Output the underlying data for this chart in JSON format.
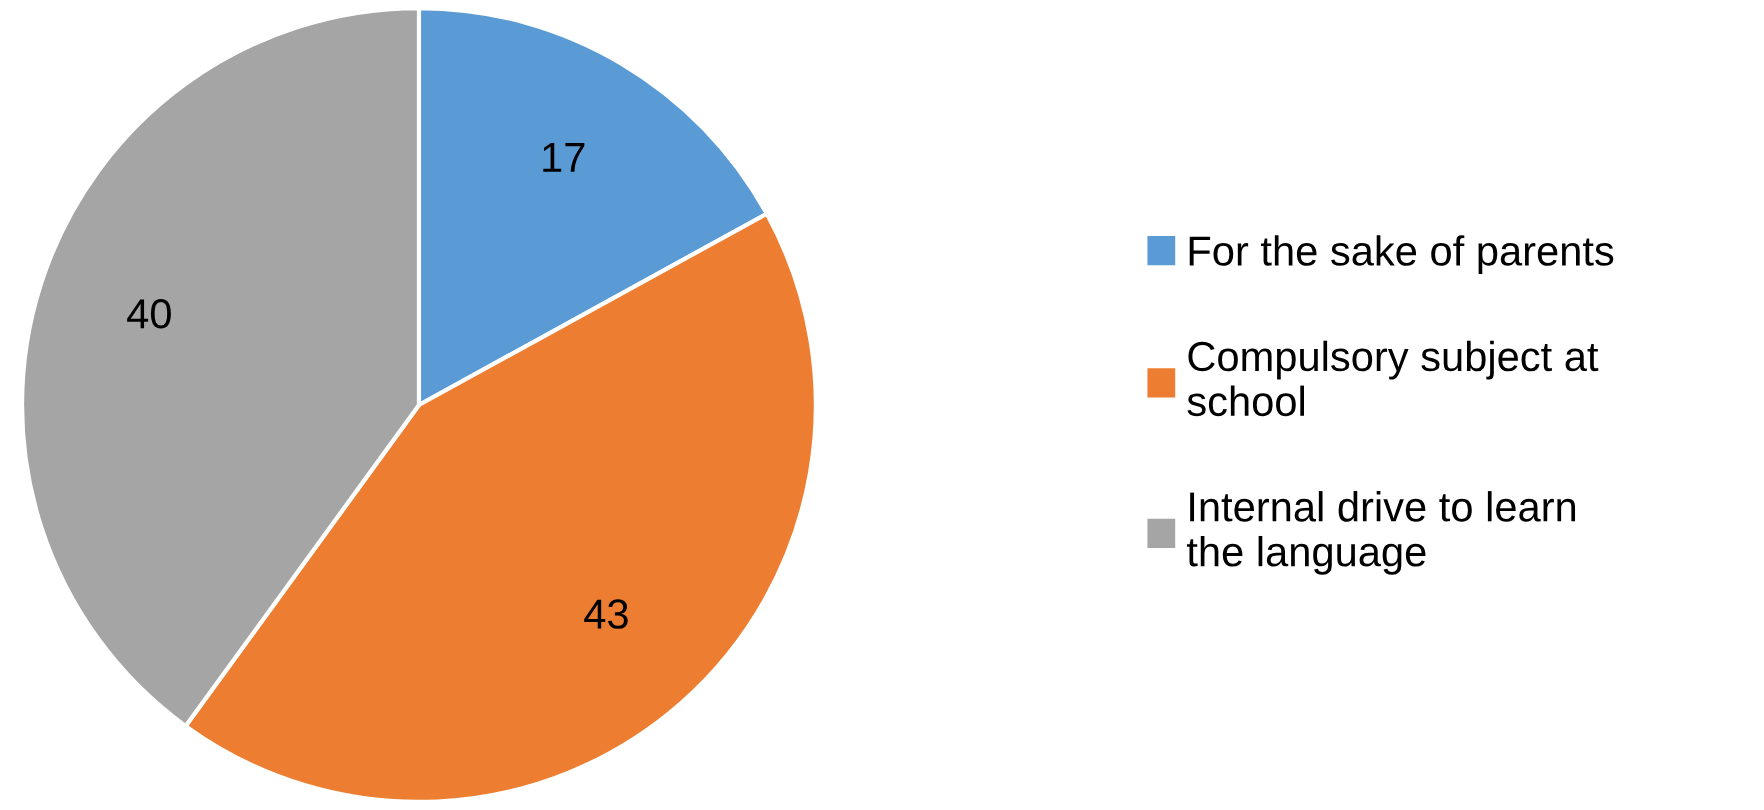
{
  "chart_data": {
    "type": "pie",
    "categories": [
      "For the sake of parents",
      "Compulsory subject at school",
      "Internal drive to learn the language"
    ],
    "values": [
      17,
      43,
      40
    ],
    "colors": [
      "#5b9bd5",
      "#ed7d31",
      "#a5a5a5"
    ],
    "data_labels": true,
    "legend": "right"
  }
}
